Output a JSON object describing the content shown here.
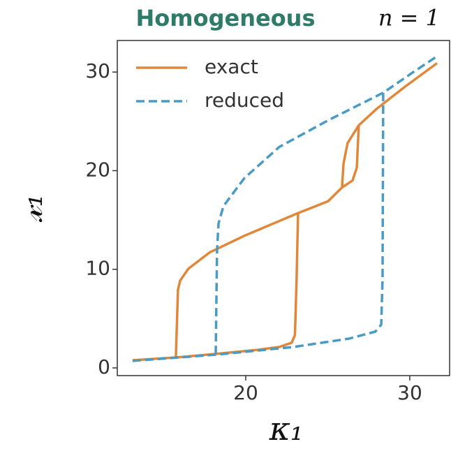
{
  "chart_data": {
    "type": "line",
    "title": "Homogeneous",
    "annotation": "n = 1",
    "xlabel": "κ₁",
    "ylabel": "𝓍₁",
    "xlim": [
      12.17,
      32.47
    ],
    "ylim": [
      -0.78,
      33.2
    ],
    "xticks": [
      20,
      30
    ],
    "yticks": [
      0,
      10,
      20,
      30
    ],
    "legend": "upper left",
    "series": [
      {
        "name": "exact",
        "color": "#e0873a",
        "dash": false,
        "x": [
          13.1,
          15.74,
          18.2,
          20.77,
          22.04,
          22.8,
          23.0,
          23.1,
          23.19,
          25.02,
          25.87,
          26.51,
          26.77,
          26.89,
          28.0,
          29.7,
          31.66,
          null,
          26.89,
          26.21,
          25.96,
          25.87,
          null,
          23.19,
          19.92,
          17.79,
          16.5,
          16.0,
          15.87,
          15.74
        ],
        "values": [
          0.78,
          1.06,
          1.42,
          1.84,
          2.12,
          2.55,
          3.33,
          9.0,
          15.7,
          16.9,
          18.3,
          19.0,
          20.3,
          24.6,
          26.3,
          28.5,
          30.9,
          null,
          24.6,
          22.8,
          20.7,
          18.3,
          null,
          15.7,
          13.4,
          11.7,
          10.05,
          8.85,
          7.93,
          1.06
        ]
      },
      {
        "name": "reduced",
        "color": "#4a9bc4",
        "dash": true,
        "x": [
          13.1,
          18.17,
          22.9,
          26.3,
          27.9,
          28.26,
          28.34,
          28.38,
          30.13,
          31.66,
          null,
          28.38,
          25.02,
          22.04,
          19.92,
          18.64,
          18.34,
          18.25,
          18.17
        ],
        "values": [
          0.71,
          1.34,
          2.12,
          2.97,
          3.68,
          4.39,
          9.0,
          27.9,
          29.9,
          31.6,
          null,
          27.9,
          25.1,
          22.4,
          19.25,
          16.4,
          14.65,
          11.8,
          1.34
        ]
      }
    ]
  }
}
